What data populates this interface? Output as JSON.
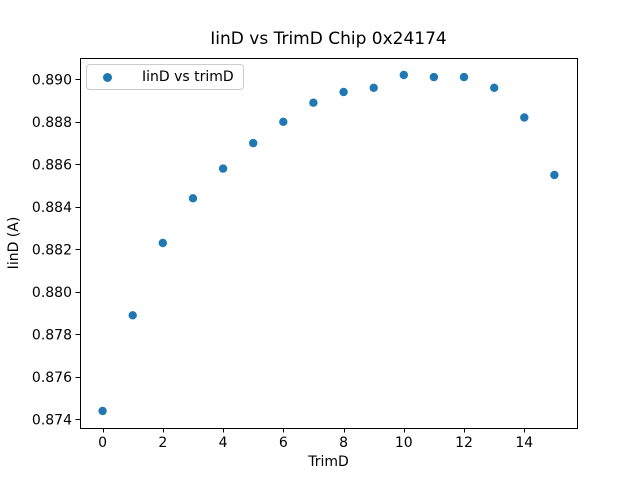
{
  "chart_data": {
    "type": "scatter",
    "title": "IinD vs TrimD Chip 0x24174",
    "xlabel": "TrimD",
    "ylabel": "IinD (A)",
    "series": [
      {
        "name": "IinD vs trimD",
        "color": "#1f77b4",
        "x": [
          0,
          1,
          2,
          3,
          4,
          5,
          6,
          7,
          8,
          9,
          10,
          11,
          12,
          13,
          14,
          15
        ],
        "y": [
          0.8744,
          0.8789,
          0.8823,
          0.8844,
          0.8858,
          0.887,
          0.888,
          0.8889,
          0.8894,
          0.8896,
          0.8902,
          0.8901,
          0.8901,
          0.8896,
          0.8882,
          0.8855
        ]
      }
    ],
    "xlim": [
      -0.75,
      15.75
    ],
    "ylim": [
      0.8736,
      0.891
    ],
    "xticks": [
      0,
      2,
      4,
      6,
      8,
      10,
      12,
      14
    ],
    "xtick_labels": [
      "0",
      "2",
      "4",
      "6",
      "8",
      "10",
      "12",
      "14"
    ],
    "yticks": [
      0.874,
      0.876,
      0.878,
      0.88,
      0.882,
      0.884,
      0.886,
      0.888,
      0.89
    ],
    "ytick_labels": [
      "0.874",
      "0.876",
      "0.878",
      "0.880",
      "0.882",
      "0.884",
      "0.886",
      "0.888",
      "0.890"
    ],
    "legend": {
      "position": "upper left",
      "label": "IinD vs trimD"
    },
    "grid": false,
    "colors": {
      "marker": "#1f77b4",
      "spine": "#000000",
      "legend_border": "#cccccc",
      "background": "#ffffff"
    }
  }
}
